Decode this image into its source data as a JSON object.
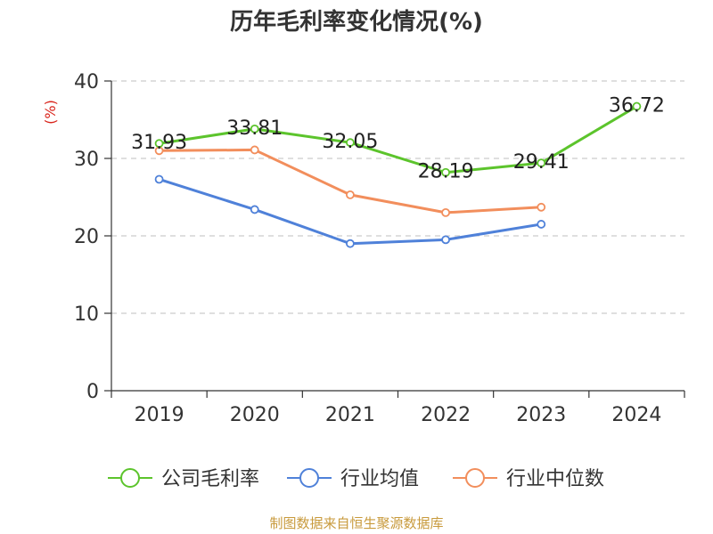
{
  "chart_data": {
    "type": "line",
    "title": "历年毛利率变化情况(%)",
    "ylabel": "(%)",
    "xlabel": "",
    "categories": [
      "2019",
      "2020",
      "2021",
      "2022",
      "2023",
      "2024"
    ],
    "ylim": [
      0,
      40
    ],
    "yticks": [
      0,
      10,
      20,
      30,
      40
    ],
    "grid": true,
    "legend_position": "bottom",
    "series": [
      {
        "name": "公司毛利率",
        "color": "#5cc42c",
        "values": [
          31.93,
          33.81,
          32.05,
          28.19,
          29.41,
          36.72
        ],
        "labels": [
          "31.93",
          "33.81",
          "32.05",
          "28.19",
          "29.41",
          "36.72"
        ]
      },
      {
        "name": "行业均值",
        "color": "#4f81d9",
        "values": [
          27.3,
          23.4,
          19.0,
          19.5,
          21.5,
          null
        ]
      },
      {
        "name": "行业中位数",
        "color": "#f28e5c",
        "values": [
          31.0,
          31.1,
          25.3,
          23.0,
          23.7,
          null
        ]
      }
    ]
  },
  "source_text": "制图数据来自恒生聚源数据库"
}
